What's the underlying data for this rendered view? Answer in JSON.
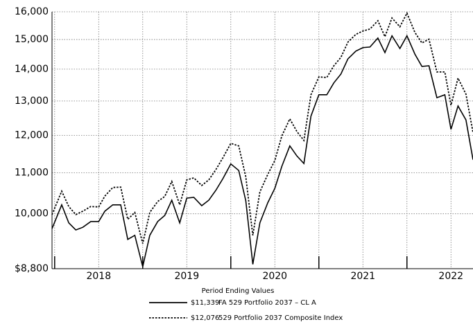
{
  "chart_data": {
    "type": "line",
    "log_scale": true,
    "grid": true,
    "legend_title": "Period Ending Values",
    "xlim": [
      2017.97,
      2022.75
    ],
    "ylim": [
      8800,
      16000
    ],
    "yticks": [
      {
        "value": 8800,
        "label": "$8,800"
      },
      {
        "value": 10000,
        "label": "10,000"
      },
      {
        "value": 11000,
        "label": "11,000"
      },
      {
        "value": 12000,
        "label": "12,000"
      },
      {
        "value": 13000,
        "label": "13,000"
      },
      {
        "value": 14000,
        "label": "14,000"
      },
      {
        "value": 15000,
        "label": "15,000"
      },
      {
        "value": 16000,
        "label": "16,000"
      }
    ],
    "xticks": [
      {
        "value": 2018.5,
        "label": "2018"
      },
      {
        "value": 2019.5,
        "label": "2019"
      },
      {
        "value": 2020.5,
        "label": "2020"
      },
      {
        "value": 2021.5,
        "label": "2021"
      },
      {
        "value": 2022.5,
        "label": "2022"
      }
    ],
    "xminor": [
      2018,
      2019,
      2020,
      2021,
      2022
    ],
    "x": [
      2017.97,
      2018.08,
      2018.16,
      2018.24,
      2018.32,
      2018.41,
      2018.5,
      2018.57,
      2018.66,
      2018.75,
      2018.83,
      2018.91,
      2019.0,
      2019.08,
      2019.17,
      2019.25,
      2019.33,
      2019.42,
      2019.5,
      2019.58,
      2019.67,
      2019.75,
      2019.83,
      2019.91,
      2020.0,
      2020.09,
      2020.17,
      2020.25,
      2020.33,
      2020.42,
      2020.5,
      2020.58,
      2020.67,
      2020.75,
      2020.83,
      2020.91,
      2021.0,
      2021.09,
      2021.17,
      2021.25,
      2021.33,
      2021.42,
      2021.5,
      2021.58,
      2021.67,
      2021.75,
      2021.83,
      2021.92,
      2022.0,
      2022.09,
      2022.17,
      2022.25,
      2022.34,
      2022.43,
      2022.5,
      2022.58,
      2022.67,
      2022.75
    ],
    "series": [
      {
        "name": "FA 529 Portfolio 2037 – CL A",
        "end_label": "$11,339",
        "color": "#000000",
        "dash": "solid",
        "values": [
          9660,
          10210,
          9790,
          9630,
          9690,
          9820,
          9820,
          10060,
          10210,
          10210,
          9420,
          9510,
          8840,
          9510,
          9820,
          9960,
          10320,
          9790,
          10370,
          10390,
          10190,
          10320,
          10560,
          10850,
          11230,
          11060,
          10310,
          8890,
          9790,
          10260,
          10610,
          11170,
          11710,
          11440,
          11240,
          12550,
          13190,
          13190,
          13560,
          13840,
          14340,
          14600,
          14720,
          14740,
          15050,
          14550,
          15130,
          14690,
          15130,
          14500,
          14090,
          14110,
          13100,
          13190,
          12170,
          12850,
          12440,
          11340
        ]
      },
      {
        "name": "529 Portfolio 2037 Composite Index",
        "end_label": "$12,076",
        "color": "#000000",
        "dash": "dotted",
        "values": [
          9980,
          10540,
          10170,
          9980,
          10060,
          10170,
          10160,
          10420,
          10630,
          10640,
          9870,
          10030,
          9330,
          10030,
          10290,
          10410,
          10780,
          10210,
          10820,
          10870,
          10680,
          10820,
          11080,
          11390,
          11780,
          11710,
          10900,
          9510,
          10520,
          10960,
          11320,
          11990,
          12470,
          12110,
          11860,
          13190,
          13750,
          13730,
          14110,
          14390,
          14910,
          15180,
          15300,
          15370,
          15670,
          15100,
          15770,
          15450,
          15950,
          15250,
          14880,
          15010,
          13910,
          13910,
          12870,
          13710,
          13210,
          12080
        ]
      }
    ]
  }
}
